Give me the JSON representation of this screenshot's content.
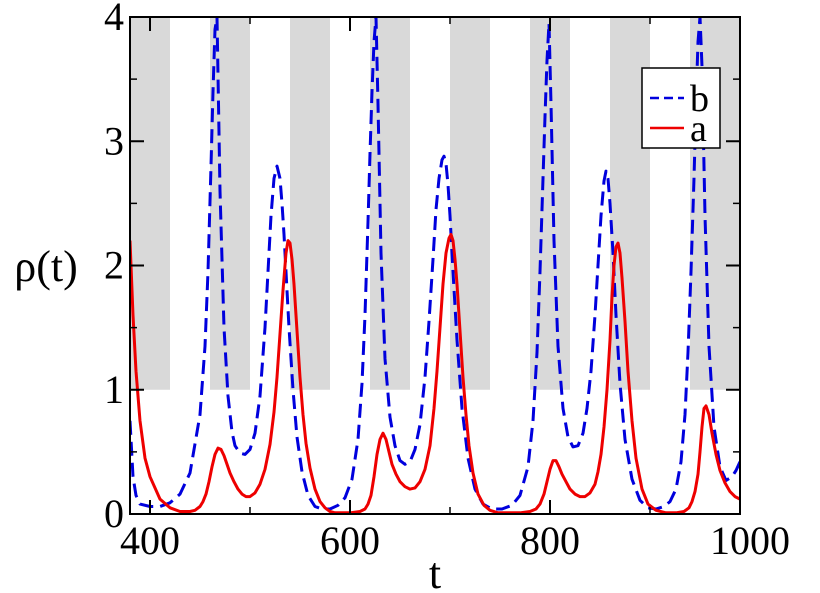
{
  "chart_data": {
    "type": "line",
    "title": "",
    "xlabel": "t",
    "ylabel": "ρ(t)",
    "xlim": [
      380,
      990
    ],
    "ylim": [
      0,
      4
    ],
    "x_ticks": [
      400,
      600,
      800,
      1000
    ],
    "x_tick_labels": [
      "400",
      "600",
      "800",
      "1000"
    ],
    "y_ticks": [
      0,
      1,
      2,
      3,
      4
    ],
    "y_tick_labels": [
      "0",
      "1",
      "2",
      "3",
      "4"
    ],
    "grid": false,
    "shaded_bands": {
      "y_range": [
        1,
        4
      ],
      "x_intervals": [
        [
          380,
          420
        ],
        [
          460,
          500
        ],
        [
          540,
          580
        ],
        [
          620,
          660
        ],
        [
          700,
          740
        ],
        [
          780,
          820
        ],
        [
          860,
          900
        ],
        [
          940,
          990
        ]
      ],
      "color": "#d9d9d9"
    },
    "legend": {
      "position": "top-right",
      "entries": [
        "b",
        "a"
      ]
    },
    "series": [
      {
        "name": "b",
        "color": "#0000dd",
        "style": "dashed",
        "x": [
          380,
          383,
          386,
          390,
          400,
          410,
          420,
          430,
          440,
          450,
          455,
          458,
          461,
          463,
          465,
          467,
          470,
          474,
          478,
          482,
          485,
          490,
          495,
          500,
          505,
          510,
          515,
          518,
          521,
          524,
          527,
          530,
          532,
          534,
          536,
          539,
          543,
          547,
          552,
          558,
          565,
          572,
          580,
          588,
          595,
          602,
          608,
          612,
          615,
          618,
          620,
          622,
          624,
          626,
          628,
          631,
          635,
          640,
          645,
          650,
          655,
          660,
          665,
          670,
          675,
          679,
          683,
          686,
          689,
          692,
          694,
          696,
          698,
          700,
          703,
          707,
          712,
          718,
          725,
          733,
          742,
          752,
          762,
          770,
          778,
          783,
          787,
          790,
          793,
          795,
          797,
          799,
          801,
          804,
          808,
          813,
          818,
          823,
          828,
          833,
          837,
          841,
          845,
          848,
          851,
          854,
          856,
          858,
          860,
          863,
          866,
          870,
          875,
          882,
          890,
          898,
          906,
          914,
          920,
          926,
          931,
          935,
          938,
          941,
          944,
          946,
          948,
          950,
          952,
          955,
          959,
          964,
          970,
          976,
          982,
          986,
          990
        ],
        "y": [
          0.75,
          0.3,
          0.15,
          0.08,
          0.06,
          0.06,
          0.09,
          0.16,
          0.33,
          0.8,
          1.35,
          1.95,
          2.8,
          3.4,
          3.9,
          4.0,
          2.6,
          1.5,
          0.95,
          0.66,
          0.55,
          0.49,
          0.48,
          0.52,
          0.65,
          0.95,
          1.5,
          1.95,
          2.4,
          2.7,
          2.8,
          2.7,
          2.5,
          2.25,
          1.95,
          1.5,
          1.0,
          0.62,
          0.34,
          0.15,
          0.06,
          0.04,
          0.04,
          0.07,
          0.13,
          0.28,
          0.6,
          1.05,
          1.6,
          2.35,
          2.9,
          3.4,
          3.8,
          4.0,
          3.3,
          2.1,
          1.25,
          0.78,
          0.55,
          0.43,
          0.4,
          0.42,
          0.52,
          0.72,
          1.1,
          1.55,
          2.05,
          2.45,
          2.7,
          2.85,
          2.88,
          2.82,
          2.65,
          2.4,
          1.95,
          1.4,
          0.85,
          0.45,
          0.2,
          0.08,
          0.04,
          0.04,
          0.07,
          0.15,
          0.38,
          0.75,
          1.3,
          1.95,
          2.7,
          3.2,
          3.65,
          3.95,
          3.3,
          2.2,
          1.35,
          0.85,
          0.62,
          0.54,
          0.55,
          0.65,
          0.85,
          1.15,
          1.6,
          2.0,
          2.4,
          2.68,
          2.76,
          2.7,
          2.5,
          2.1,
          1.6,
          1.05,
          0.6,
          0.28,
          0.11,
          0.05,
          0.04,
          0.06,
          0.1,
          0.2,
          0.42,
          0.8,
          1.3,
          1.95,
          2.7,
          3.3,
          3.8,
          4.0,
          3.6,
          2.4,
          1.35,
          0.7,
          0.38,
          0.27,
          0.3,
          0.35,
          0.42
        ]
      },
      {
        "name": "a",
        "color": "#ee0000",
        "style": "solid",
        "x": [
          380,
          383,
          386,
          390,
          395,
          400,
          410,
          420,
          430,
          440,
          445,
          450,
          453,
          456,
          459,
          462,
          465,
          468,
          471,
          474,
          477,
          480,
          484,
          488,
          492,
          496,
          500,
          505,
          510,
          515,
          520,
          524,
          527,
          530,
          533,
          536,
          538,
          540,
          542,
          544,
          546,
          548,
          550,
          553,
          556,
          560,
          565,
          570,
          575,
          580,
          585,
          590,
          600,
          610,
          615,
          618,
          621,
          624,
          627,
          630,
          633,
          636,
          639,
          642,
          646,
          650,
          655,
          660,
          665,
          670,
          675,
          680,
          684,
          687,
          690,
          693,
          696,
          699,
          701,
          703,
          705,
          707,
          709,
          711,
          713,
          716,
          719,
          723,
          728,
          734,
          740,
          748,
          758,
          770,
          780,
          786,
          790,
          794,
          797,
          800,
          803,
          806,
          809,
          812,
          816,
          820,
          825,
          830,
          835,
          840,
          845,
          848,
          851,
          854,
          857,
          860,
          862,
          864,
          866,
          868,
          870,
          872,
          875,
          878,
          882,
          886,
          892,
          898,
          906,
          916,
          926,
          934,
          939,
          942,
          945,
          948,
          950,
          952,
          954,
          956,
          959,
          962,
          966,
          970,
          975,
          980,
          985,
          990
        ],
        "y": [
          2.2,
          1.6,
          1.15,
          0.75,
          0.45,
          0.3,
          0.12,
          0.05,
          0.02,
          0.02,
          0.03,
          0.06,
          0.1,
          0.16,
          0.26,
          0.38,
          0.48,
          0.53,
          0.52,
          0.47,
          0.4,
          0.33,
          0.26,
          0.2,
          0.16,
          0.14,
          0.14,
          0.17,
          0.24,
          0.36,
          0.56,
          0.82,
          1.1,
          1.45,
          1.8,
          2.1,
          2.2,
          2.18,
          2.05,
          1.85,
          1.6,
          1.35,
          1.1,
          0.8,
          0.57,
          0.37,
          0.2,
          0.1,
          0.05,
          0.02,
          0.01,
          0.01,
          0.01,
          0.02,
          0.04,
          0.08,
          0.15,
          0.3,
          0.48,
          0.6,
          0.65,
          0.6,
          0.5,
          0.4,
          0.32,
          0.26,
          0.22,
          0.2,
          0.21,
          0.26,
          0.36,
          0.55,
          0.85,
          1.15,
          1.5,
          1.85,
          2.1,
          2.22,
          2.25,
          2.2,
          2.05,
          1.85,
          1.6,
          1.35,
          1.1,
          0.8,
          0.55,
          0.33,
          0.16,
          0.07,
          0.03,
          0.01,
          0.01,
          0.01,
          0.02,
          0.04,
          0.08,
          0.16,
          0.26,
          0.36,
          0.43,
          0.43,
          0.38,
          0.32,
          0.26,
          0.2,
          0.16,
          0.14,
          0.14,
          0.17,
          0.24,
          0.34,
          0.48,
          0.7,
          1.0,
          1.4,
          1.75,
          2.0,
          2.15,
          2.18,
          2.1,
          1.9,
          1.55,
          1.15,
          0.75,
          0.45,
          0.2,
          0.08,
          0.03,
          0.01,
          0.01,
          0.02,
          0.05,
          0.1,
          0.18,
          0.32,
          0.5,
          0.7,
          0.85,
          0.87,
          0.8,
          0.65,
          0.48,
          0.35,
          0.25,
          0.18,
          0.14,
          0.12
        ]
      }
    ]
  }
}
